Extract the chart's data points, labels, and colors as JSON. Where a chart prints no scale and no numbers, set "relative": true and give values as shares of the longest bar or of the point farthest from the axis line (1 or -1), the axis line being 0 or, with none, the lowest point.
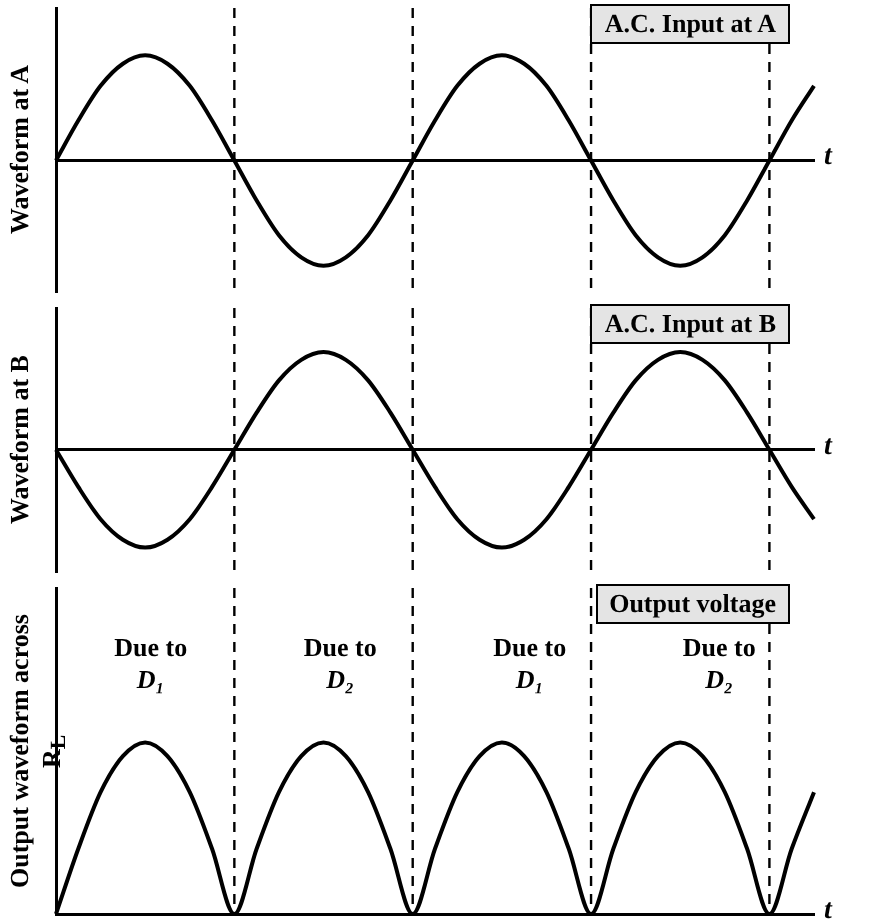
{
  "chart_data": [
    {
      "type": "line",
      "title": "A.C. Input at A",
      "ylabel": "Waveform at A",
      "xlabel": "t",
      "relative": true,
      "grid": "x",
      "categories": [
        null,
        null,
        null,
        null,
        null,
        null,
        null,
        null,
        null,
        null,
        null,
        null,
        null,
        null,
        null,
        null,
        null,
        null,
        null,
        null,
        null,
        null,
        null,
        null,
        null,
        null,
        null,
        null,
        null,
        null,
        null,
        null,
        null,
        null,
        null
      ],
      "series": [
        {
          "color": "#000000",
          "values": [
            0,
            0.38,
            0.71,
            0.92,
            1,
            0.92,
            0.71,
            0.38,
            0,
            -0.38,
            -0.71,
            -0.92,
            -1,
            -0.92,
            -0.71,
            -0.38,
            0,
            0.38,
            0.71,
            0.92,
            1,
            0.92,
            0.71,
            0.38,
            0,
            -0.38,
            -0.71,
            -0.92,
            -1,
            -0.92,
            -0.71,
            -0.38,
            0,
            0.38,
            0.71
          ]
        }
      ]
    },
    {
      "type": "line",
      "title": "A.C. Input at B",
      "ylabel": "Waveform at B",
      "xlabel": "t",
      "relative": true,
      "grid": "x",
      "categories": [
        null,
        null,
        null,
        null,
        null,
        null,
        null,
        null,
        null,
        null,
        null,
        null,
        null,
        null,
        null,
        null,
        null,
        null,
        null,
        null,
        null,
        null,
        null,
        null,
        null,
        null,
        null,
        null,
        null,
        null,
        null,
        null,
        null,
        null,
        null
      ],
      "series": [
        {
          "color": "#000000",
          "values": [
            0,
            -0.38,
            -0.71,
            -0.92,
            -1,
            -0.92,
            -0.71,
            -0.38,
            0,
            0.38,
            0.71,
            0.92,
            1,
            0.92,
            0.71,
            0.38,
            0,
            -0.38,
            -0.71,
            -0.92,
            -1,
            -0.92,
            -0.71,
            -0.38,
            0,
            0.38,
            0.71,
            0.92,
            1,
            0.92,
            0.71,
            0.38,
            0,
            -0.38,
            -0.71
          ]
        }
      ]
    },
    {
      "type": "line",
      "title": "Output voltage",
      "ylabel": "Output waveform across R$_{L}$",
      "xlabel": "t",
      "relative": true,
      "grid": "x",
      "categories": [
        null,
        null,
        null,
        null,
        null,
        null,
        null,
        null,
        null,
        null,
        null,
        null,
        null,
        null,
        null,
        null,
        null,
        null,
        null,
        null,
        null,
        null,
        null,
        null,
        null,
        null,
        null,
        null,
        null,
        null,
        null,
        null,
        null,
        null,
        null
      ],
      "series": [
        {
          "color": "#000000",
          "values": [
            0,
            0.38,
            0.71,
            0.92,
            1,
            0.92,
            0.71,
            0.38,
            0,
            0.38,
            0.71,
            0.92,
            1,
            0.92,
            0.71,
            0.38,
            0,
            0.38,
            0.71,
            0.92,
            1,
            0.92,
            0.71,
            0.38,
            0,
            0.38,
            0.71,
            0.92,
            1,
            0.92,
            0.71,
            0.38,
            0,
            0.38,
            0.71
          ]
        }
      ],
      "annotations": [
        "Due to D₁",
        "Due to D₂",
        "Due to D₁",
        "Due to D₂"
      ]
    }
  ]
}
